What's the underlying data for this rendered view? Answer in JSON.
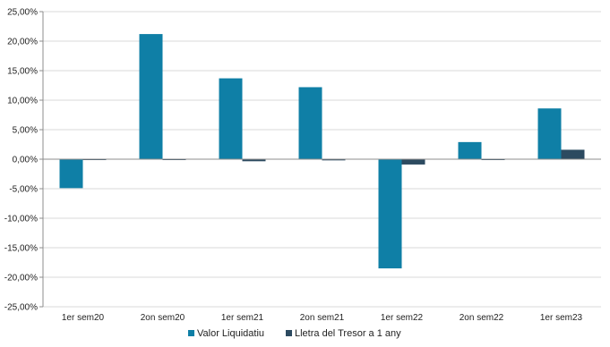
{
  "chart_data": {
    "type": "bar",
    "categories": [
      "1er sem20",
      "2on sem20",
      "1er sem21",
      "2on sem21",
      "1er sem22",
      "2on sem22",
      "1er sem23"
    ],
    "series": [
      {
        "name": "Valor Liquidatiu",
        "color": "#0F7FA6",
        "values": [
          -4.9,
          21.2,
          13.7,
          12.2,
          -18.5,
          2.9,
          8.6
        ]
      },
      {
        "name": "Lletra del Tresor a 1 any",
        "color": "#2C4A60",
        "values": [
          -0.1,
          -0.15,
          -0.35,
          -0.2,
          -0.9,
          -0.15,
          1.6
        ]
      }
    ],
    "ylim": [
      -25,
      25
    ],
    "ytick_step": 5,
    "ytick_labels": [
      "-25,00%",
      "-20,00%",
      "-15,00%",
      "-10,00%",
      "-5,00%",
      "0,00%",
      "5,00%",
      "10,00%",
      "15,00%",
      "20,00%",
      "25,00%"
    ],
    "grid": true,
    "legend_position": "bottom",
    "title": "",
    "xlabel": "",
    "ylabel": ""
  }
}
